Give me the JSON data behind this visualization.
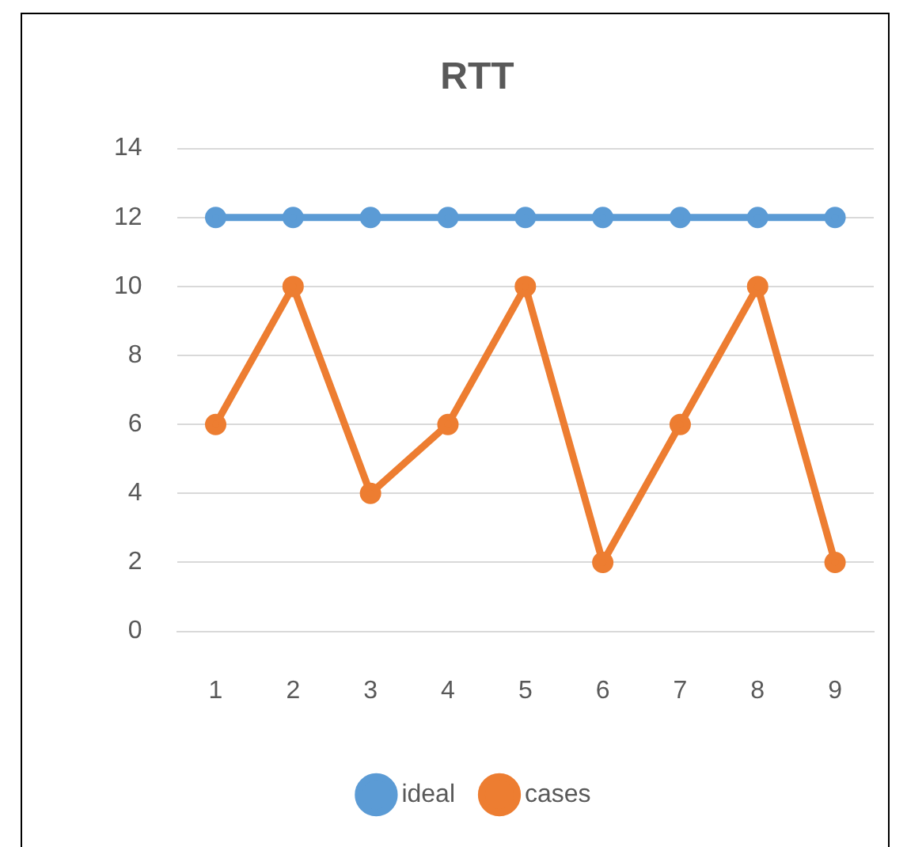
{
  "chart_data": {
    "type": "line",
    "title": "RTT",
    "categories": [
      "1",
      "2",
      "3",
      "4",
      "5",
      "6",
      "7",
      "8",
      "9"
    ],
    "series": [
      {
        "name": "ideal",
        "color": "#5b9bd5",
        "values": [
          12,
          12,
          12,
          12,
          12,
          12,
          12,
          12,
          12
        ]
      },
      {
        "name": "cases",
        "color": "#ed7d31",
        "values": [
          6,
          10,
          4,
          6,
          10,
          2,
          6,
          10,
          2
        ]
      }
    ],
    "ylim": [
      0,
      14
    ],
    "yticks": [
      0,
      2,
      4,
      6,
      8,
      10,
      12,
      14
    ],
    "grid": "y",
    "legend": "bottom",
    "marker": "circle",
    "line_style": "solid"
  }
}
